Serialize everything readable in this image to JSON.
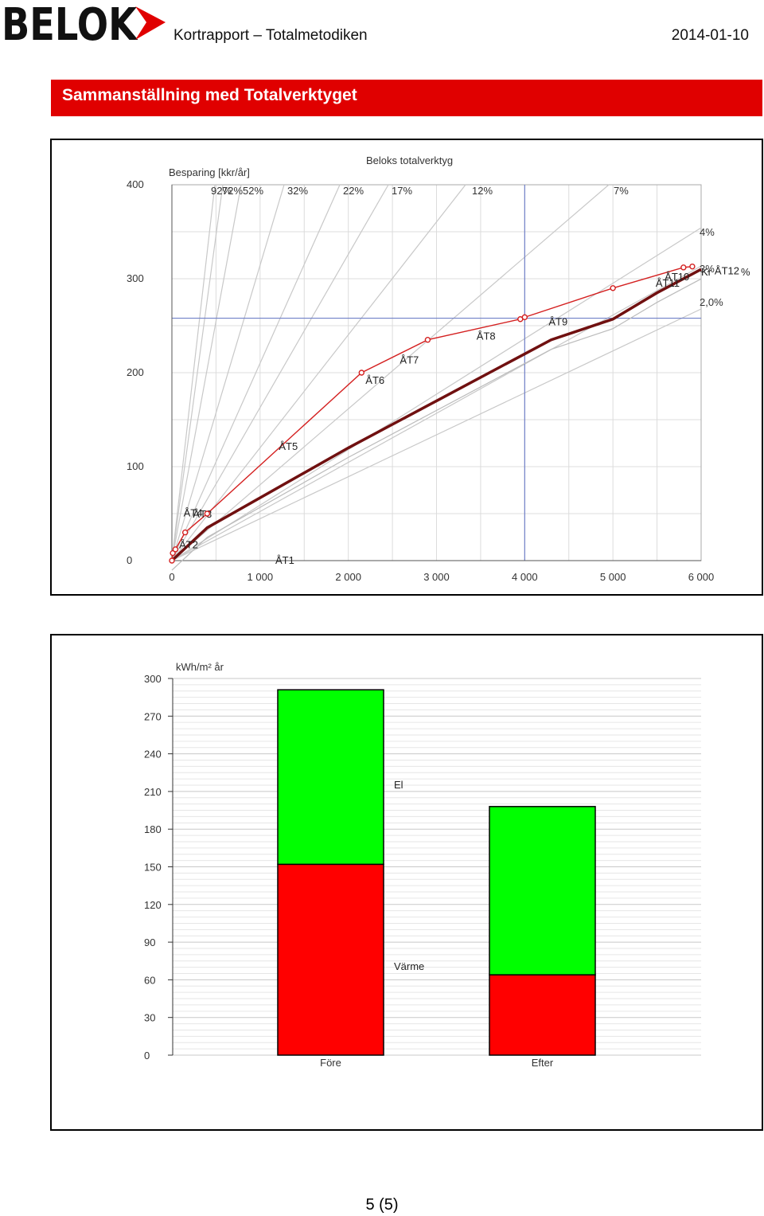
{
  "header": {
    "logo_text": "BELOK",
    "title": "Kortrapport – Totalmetodiken",
    "date": "2014-01-10"
  },
  "banner": {
    "title": "Sammanställning med Totalverktyget"
  },
  "colors": {
    "banner": "#e00000",
    "el": "#00ff00",
    "varme": "#ff0000",
    "red_line": "#d42020",
    "dark_line": "#701010"
  },
  "chart_data": [
    {
      "type": "line",
      "title": "Beloks totalverktyg",
      "ylabel": "Besparing [kkr/år]",
      "xlabel": "",
      "xlim": [
        0,
        6000
      ],
      "ylim": [
        0,
        400
      ],
      "x_ticks": [
        "0",
        "1 000",
        "2 000",
        "3 000",
        "4 000",
        "5 000",
        "6 000"
      ],
      "y_ticks": [
        "0",
        "100",
        "200",
        "300",
        "400"
      ],
      "reference_lines": {
        "vertical_x": 4000,
        "horizontal_y": 258
      },
      "yield_lines": [
        "92%",
        "72%",
        "52%",
        "32%",
        "22%",
        "17%",
        "12%",
        "7%",
        "4%",
        "3%",
        "2,0%"
      ],
      "series": [
        {
          "points": [
            {
              "label": "ÅT1",
              "x": 0,
              "y": 0
            },
            {
              "label": "ÅT2",
              "x": 10,
              "y": 8
            },
            {
              "label": "ÅT3",
              "x": 40,
              "y": 12
            },
            {
              "label": "ÅT4",
              "x": 150,
              "y": 30
            },
            {
              "label": "ÅT5",
              "x": 400,
              "y": 50
            },
            {
              "label": "ÅT6",
              "x": 2150,
              "y": 200
            },
            {
              "label": "ÅT7",
              "x": 2900,
              "y": 235
            },
            {
              "label": "ÅT8",
              "x": 3950,
              "y": 257
            },
            {
              "label": "ÅT9",
              "x": 4000,
              "y": 259
            },
            {
              "label": "ÅT10",
              "x": 5000,
              "y": 290
            },
            {
              "label": "ÅT11",
              "x": 5800,
              "y": 312
            },
            {
              "label": "ÅT12",
              "x": 5900,
              "y": 313
            }
          ]
        },
        {
          "points": [
            {
              "x": 0,
              "y": 0
            },
            {
              "x": 400,
              "y": 35
            },
            {
              "x": 2000,
              "y": 120
            },
            {
              "x": 3000,
              "y": 170
            },
            {
              "x": 4000,
              "y": 220
            },
            {
              "x": 4300,
              "y": 235
            },
            {
              "x": 5000,
              "y": 257
            },
            {
              "x": 5500,
              "y": 285
            },
            {
              "x": 6000,
              "y": 310
            }
          ]
        }
      ],
      "end_labels": [
        "ÅT12",
        "Kr",
        "%"
      ]
    },
    {
      "type": "bar",
      "stacked": true,
      "ylabel": "kWh/m² år",
      "categories": [
        "Före",
        "Efter"
      ],
      "ylim": [
        0,
        300
      ],
      "y_ticks": [
        "0",
        "30",
        "60",
        "90",
        "120",
        "150",
        "180",
        "210",
        "240",
        "270",
        "300"
      ],
      "series": [
        {
          "name": "Värme",
          "values": [
            152,
            64
          ]
        },
        {
          "name": "El",
          "values": [
            139,
            134
          ]
        }
      ]
    }
  ],
  "footer": {
    "page": "5 (5)"
  }
}
